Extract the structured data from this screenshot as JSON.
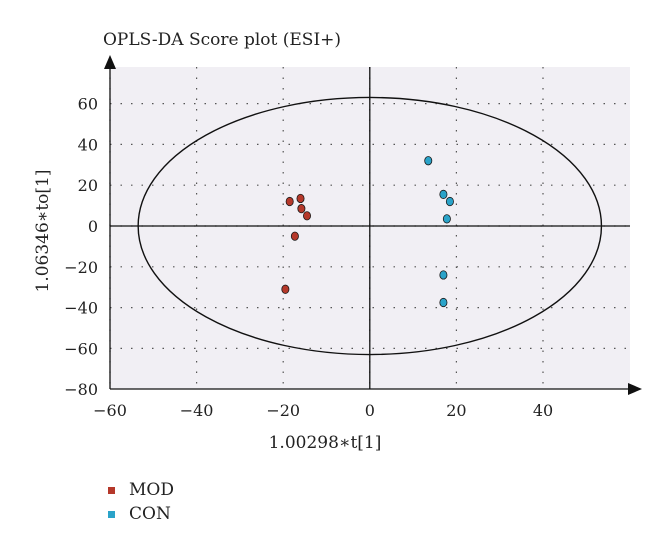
{
  "chart_data": {
    "type": "scatter",
    "title": "OPLS-DA Score plot (ESI+)",
    "xlabel": "1.00298∗t[1]",
    "ylabel": "1.06346∗to[1]",
    "xlim": [
      -60,
      60
    ],
    "ylim": [
      -80,
      80
    ],
    "xticks": [
      "−60",
      "−40",
      "−20",
      "0",
      "20",
      "40"
    ],
    "yticks": [
      "60",
      "40",
      "20",
      "0",
      "−20",
      "−40",
      "−60",
      "−80"
    ],
    "grid": true,
    "series": [
      {
        "name": "MOD",
        "color": "#b5382a",
        "points": [
          [
            -18.5,
            12
          ],
          [
            -16,
            13.5
          ],
          [
            -15.8,
            8.5
          ],
          [
            -14.5,
            5
          ],
          [
            -17.3,
            -5
          ],
          [
            -19.5,
            -31
          ]
        ]
      },
      {
        "name": "CON",
        "color": "#2aa3c9",
        "points": [
          [
            13.5,
            32
          ],
          [
            17,
            15.5
          ],
          [
            18.5,
            12
          ],
          [
            17.8,
            3.5
          ],
          [
            17,
            -24
          ],
          [
            17,
            -37.5
          ]
        ]
      }
    ],
    "ellipse": {
      "cx": 0,
      "cy": 0,
      "rx": 53.5,
      "ry": 63
    }
  }
}
